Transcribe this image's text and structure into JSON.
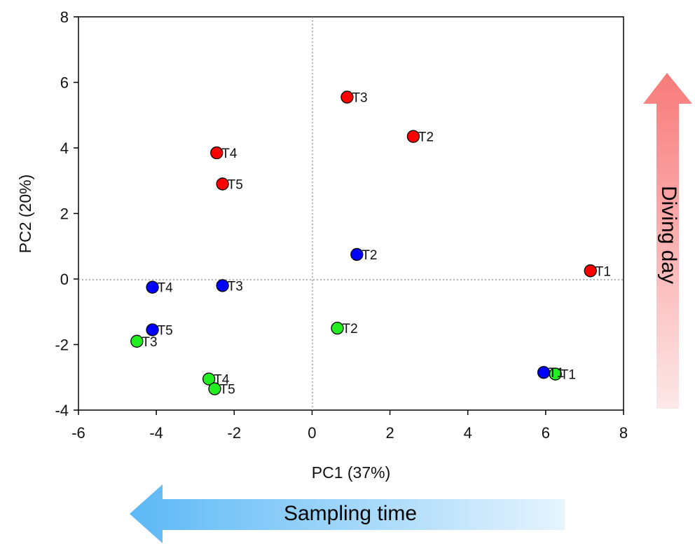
{
  "chart_data": {
    "type": "scatter",
    "xlabel": "PC1 (37%)",
    "ylabel": "PC2 (20%)",
    "xlim": [
      -6,
      8
    ],
    "ylim": [
      -4,
      8
    ],
    "xticks": [
      -6,
      -4,
      -2,
      0,
      2,
      4,
      6,
      8
    ],
    "yticks": [
      -4,
      -2,
      0,
      2,
      4,
      6,
      8
    ],
    "reference_lines": {
      "x": 0,
      "y": 0,
      "style": "dotted"
    },
    "grid": false,
    "series": [
      {
        "color": "#ff0000",
        "points": [
          {
            "label": "T1",
            "x": 7.15,
            "y": 0.25
          },
          {
            "label": "T2",
            "x": 2.6,
            "y": 4.35
          },
          {
            "label": "T3",
            "x": 0.9,
            "y": 5.55
          },
          {
            "label": "T4",
            "x": -2.45,
            "y": 3.85
          },
          {
            "label": "T5",
            "x": -2.3,
            "y": 2.9
          }
        ]
      },
      {
        "color": "#0000ff",
        "points": [
          {
            "label": "T1",
            "x": 5.95,
            "y": -2.85
          },
          {
            "label": "T2",
            "x": 1.15,
            "y": 0.75
          },
          {
            "label": "T3",
            "x": -2.3,
            "y": -0.2
          },
          {
            "label": "T4",
            "x": -4.1,
            "y": -0.25
          },
          {
            "label": "T5",
            "x": -4.1,
            "y": -1.55
          }
        ]
      },
      {
        "color": "#22ee22",
        "points": [
          {
            "label": "T1",
            "x": 6.25,
            "y": -2.9
          },
          {
            "label": "T2",
            "x": 0.65,
            "y": -1.5
          },
          {
            "label": "T3",
            "x": -4.5,
            "y": -1.9
          },
          {
            "label": "T4",
            "x": -2.65,
            "y": -3.05
          },
          {
            "label": "T5",
            "x": -2.5,
            "y": -3.35
          }
        ]
      }
    ]
  },
  "annotations": {
    "vertical_arrow": {
      "text": "Diving day",
      "color": "#f87a7a"
    },
    "horizontal_arrow": {
      "text": "Sampling time",
      "color": "#5bb8f5"
    }
  }
}
